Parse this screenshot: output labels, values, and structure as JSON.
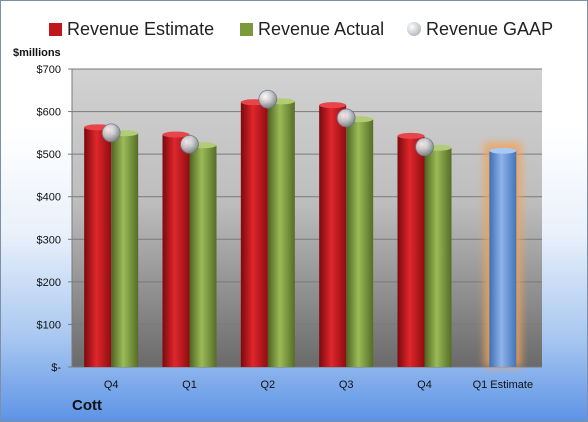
{
  "company": "Cott",
  "colors": {
    "estimate": "#c0171c",
    "actual": "#7c9a3a",
    "gaap": "#b8bcc4",
    "future_estimate": "#6b9bd8",
    "future_glow": "#f2a35a"
  },
  "chart_data": {
    "type": "bar",
    "ylabel": "$millions",
    "ylim": [
      0,
      700
    ],
    "yticks": [
      {
        "value": 0,
        "label": "$-"
      },
      {
        "value": 100,
        "label": "$100"
      },
      {
        "value": 200,
        "label": "$200"
      },
      {
        "value": 300,
        "label": "$300"
      },
      {
        "value": 400,
        "label": "$400"
      },
      {
        "value": 500,
        "label": "$500"
      },
      {
        "value": 600,
        "label": "$600"
      },
      {
        "value": 700,
        "label": "$700"
      }
    ],
    "categories": [
      "Q4",
      "Q1",
      "Q2",
      "Q3",
      "Q4",
      "Q1 Estimate"
    ],
    "series": [
      {
        "name": "Revenue Estimate",
        "kind": "bar",
        "values": [
          563,
          546,
          622,
          615,
          543,
          null
        ]
      },
      {
        "name": "Revenue Actual",
        "kind": "bar",
        "values": [
          549,
          521,
          624,
          582,
          515,
          null
        ]
      },
      {
        "name": "Revenue GAAP",
        "kind": "marker",
        "values": [
          550,
          523,
          629,
          585,
          517,
          null
        ]
      }
    ],
    "future_estimate": {
      "category": "Q1 Estimate",
      "value": 508
    },
    "grid": true,
    "legend_position": "top"
  }
}
